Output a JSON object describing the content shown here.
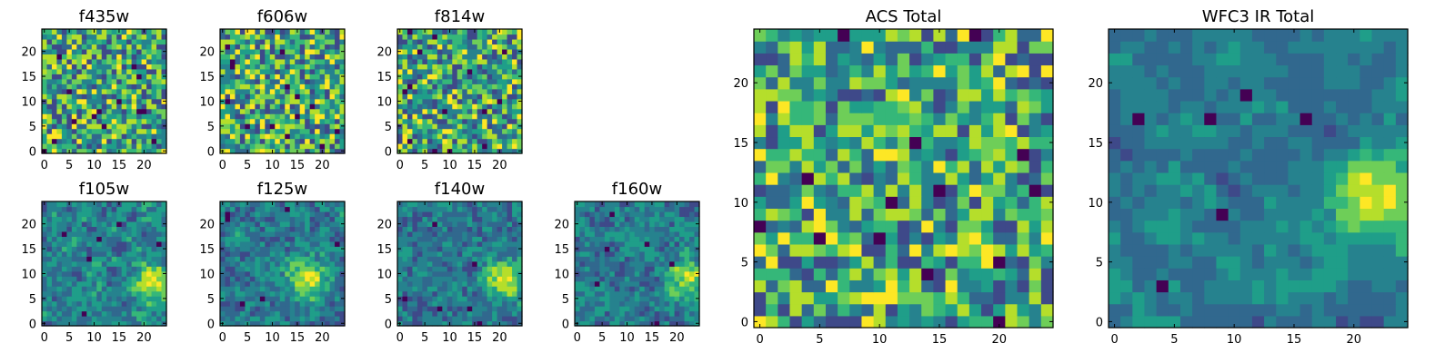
{
  "figure": {
    "panels": [
      {
        "id": "f435w",
        "title": "f435w",
        "xticks": [
          "0",
          "5",
          "10",
          "15",
          "20"
        ],
        "yticks": [
          "0",
          "5",
          "10",
          "15",
          "20"
        ],
        "seed": 11,
        "smooth": 0,
        "hotspot": null
      },
      {
        "id": "f606w",
        "title": "f606w",
        "xticks": [
          "0",
          "5",
          "10",
          "15",
          "20"
        ],
        "yticks": [
          "0",
          "5",
          "10",
          "15",
          "20"
        ],
        "seed": 23,
        "smooth": 0,
        "hotspot": null
      },
      {
        "id": "f814w",
        "title": "f814w",
        "xticks": [
          "0",
          "5",
          "10",
          "15",
          "20"
        ],
        "yticks": [
          "0",
          "5",
          "10",
          "15",
          "20"
        ],
        "seed": 37,
        "smooth": 0,
        "hotspot": null
      },
      {
        "id": "f105w",
        "title": "f105w",
        "xticks": [
          "0",
          "5",
          "10",
          "15",
          "20"
        ],
        "yticks": [
          "0",
          "5",
          "10",
          "15",
          "20"
        ],
        "seed": 41,
        "smooth": 1,
        "hotspot": [
          22,
          8
        ]
      },
      {
        "id": "f125w",
        "title": "f125w",
        "xticks": [
          "0",
          "5",
          "10",
          "15",
          "20"
        ],
        "yticks": [
          "0",
          "5",
          "10",
          "15",
          "20"
        ],
        "seed": 53,
        "smooth": 1,
        "hotspot": [
          17,
          9
        ]
      },
      {
        "id": "f140w",
        "title": "f140w",
        "xticks": [
          "0",
          "5",
          "10",
          "15",
          "20"
        ],
        "yticks": [
          "0",
          "5",
          "10",
          "15",
          "20"
        ],
        "seed": 67,
        "smooth": 1,
        "hotspot": [
          21,
          9
        ]
      },
      {
        "id": "f160w",
        "title": "f160w",
        "xticks": [
          "0",
          "5",
          "10",
          "15",
          "20"
        ],
        "yticks": [
          "0",
          "5",
          "10",
          "15",
          "20"
        ],
        "seed": 79,
        "smooth": 1,
        "hotspot": [
          22,
          9
        ]
      },
      {
        "id": "acs-total",
        "title": "ACS Total",
        "xticks": [
          "0",
          "5",
          "10",
          "15",
          "20"
        ],
        "yticks": [
          "0",
          "5",
          "10",
          "15",
          "20"
        ],
        "seed": 97,
        "smooth": 0,
        "hotspot": null
      },
      {
        "id": "wfc3-ir-total",
        "title": "WFC3 IR Total",
        "xticks": [
          "0",
          "5",
          "10",
          "15",
          "20"
        ],
        "yticks": [
          "0",
          "5",
          "10",
          "15",
          "20"
        ],
        "seed": 103,
        "smooth": 2,
        "hotspot": [
          22,
          10
        ]
      }
    ]
  },
  "chart_data": {
    "type": "heatmap",
    "colormap": "viridis",
    "grid": false,
    "image_size": [
      25,
      25
    ],
    "xlim": [
      -0.5,
      24.5
    ],
    "ylim": [
      -0.5,
      24.5
    ],
    "origin": "lower",
    "panels": [
      "f435w",
      "f606w",
      "f814w",
      "f105w",
      "f125w",
      "f140w",
      "f160w",
      "ACS Total",
      "WFC3 IR Total"
    ]
  },
  "colors": {
    "viridis": [
      "#440154",
      "#482777",
      "#3e4989",
      "#31688e",
      "#26828e",
      "#1f9e89",
      "#35b779",
      "#6ece58",
      "#b5de2b",
      "#fde725"
    ]
  }
}
